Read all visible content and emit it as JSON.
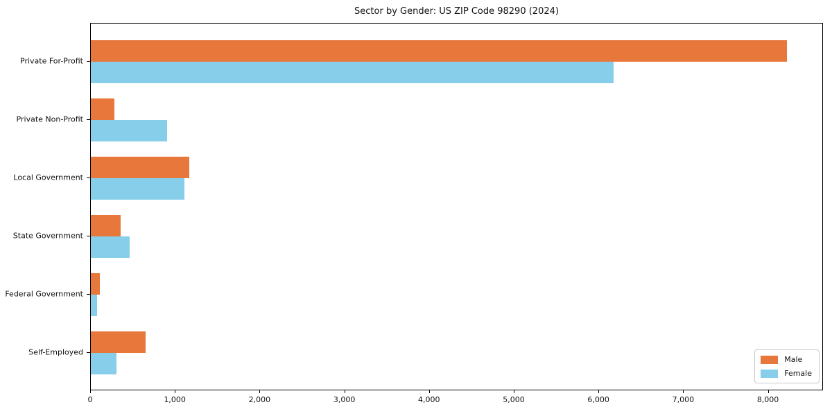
{
  "title": "Sector by Gender: US ZIP Code 98290 (2024)",
  "colors": {
    "male": "#e8773c",
    "female": "#87ceeb",
    "axis": "#000000",
    "legend_border": "#c9c9c9",
    "background": "#ffffff"
  },
  "chart_data": {
    "type": "bar",
    "orientation": "horizontal",
    "title": "Sector by Gender: US ZIP Code 98290 (2024)",
    "categories": [
      "Private For-Profit",
      "Private Non-Profit",
      "Local Government",
      "State Government",
      "Federal Government",
      "Self-Employed"
    ],
    "series": [
      {
        "name": "Male",
        "color": "#e8773c",
        "values": [
          8230,
          275,
          1165,
          355,
          110,
          650
        ]
      },
      {
        "name": "Female",
        "color": "#87ceeb",
        "values": [
          6180,
          905,
          1105,
          460,
          70,
          305
        ]
      }
    ],
    "xlabel": "",
    "ylabel": "",
    "xlim": [
      0,
      8650
    ],
    "x_ticks": [
      0,
      1000,
      2000,
      3000,
      4000,
      5000,
      6000,
      7000,
      8000
    ],
    "x_tick_labels": [
      "0",
      "1,000",
      "2,000",
      "3,000",
      "4,000",
      "5,000",
      "6,000",
      "7,000",
      "8,000"
    ],
    "grid": false,
    "legend": {
      "position": "lower right"
    }
  }
}
